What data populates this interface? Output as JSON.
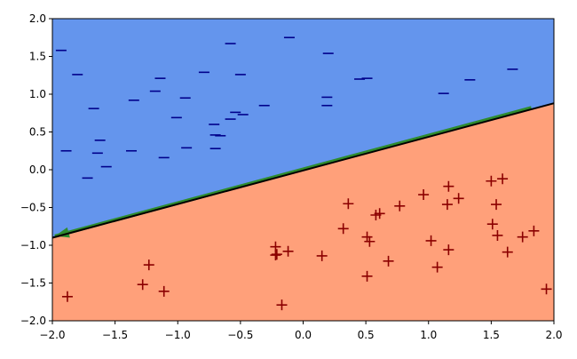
{
  "chart_data": {
    "type": "scatter",
    "xlim": [
      -2,
      2
    ],
    "ylim": [
      -2,
      2
    ],
    "xticks": [
      {
        "value": -2,
        "label": "−2.0"
      },
      {
        "value": -1.5,
        "label": "−1.5"
      },
      {
        "value": -1,
        "label": "−1.0"
      },
      {
        "value": -0.5,
        "label": "−0.5"
      },
      {
        "value": 0,
        "label": "0.0"
      },
      0.5,
      {
        "value": 1,
        "label": "1.0"
      },
      1.5,
      {
        "value": 2,
        "label": "2.0"
      }
    ],
    "yticks": [
      {
        "value": -2,
        "label": "−2.0"
      },
      {
        "value": -1.5,
        "label": "−1.5"
      },
      {
        "value": -1,
        "label": "−1.0"
      },
      {
        "value": -0.5,
        "label": "−0.5"
      },
      {
        "value": 0,
        "label": "0.0"
      },
      0.5,
      {
        "value": 1,
        "label": "1.0"
      },
      1.5,
      {
        "value": 2,
        "label": "2.0"
      }
    ],
    "regions": {
      "above": "#6495ed",
      "below": "#ffa07a"
    },
    "series": [
      {
        "marker": "_",
        "color": "#00008b",
        "x": [
          -1.93,
          -1.8,
          -1.67,
          -1.62,
          -1.64,
          -1.89,
          -1.72,
          -1.57,
          -1.37,
          -1.35,
          -1.18,
          -1.14,
          -1.11,
          -1.01,
          -0.94,
          -0.93,
          -0.79,
          -0.71,
          -0.7,
          -0.7,
          -0.66,
          -0.58,
          -0.58,
          -0.54,
          -0.5,
          -0.48,
          -0.31,
          -0.11,
          0.2,
          0.19,
          0.19,
          0.45,
          0.51,
          1.12,
          1.33,
          1.67
        ],
        "y": [
          1.58,
          1.26,
          0.81,
          0.39,
          0.22,
          0.25,
          -0.11,
          0.04,
          0.25,
          0.92,
          1.04,
          1.21,
          0.16,
          0.69,
          0.95,
          0.29,
          1.29,
          0.6,
          0.46,
          0.28,
          0.45,
          1.67,
          0.67,
          0.76,
          1.26,
          0.73,
          0.85,
          1.75,
          1.54,
          0.96,
          0.85,
          1.2,
          1.21,
          1.01,
          1.19,
          1.33
        ]
      },
      {
        "marker": "+",
        "color": "#8b0000",
        "x": [
          -1.88,
          -1.23,
          -1.28,
          -1.11,
          -0.22,
          -0.22,
          -0.21,
          -0.12,
          -0.17,
          0.15,
          0.32,
          0.36,
          0.51,
          0.53,
          0.51,
          0.58,
          0.61,
          0.68,
          0.77,
          0.96,
          1.02,
          1.07,
          1.16,
          1.15,
          1.16,
          1.24,
          1.5,
          1.59,
          1.54,
          1.51,
          1.55,
          1.63,
          1.75,
          1.84,
          1.94
        ],
        "y": [
          -1.68,
          -1.26,
          -1.52,
          -1.61,
          -1.02,
          -1.13,
          -1.12,
          -1.08,
          -1.79,
          -1.14,
          -0.78,
          -0.45,
          -0.89,
          -0.95,
          -1.41,
          -0.6,
          -0.58,
          -1.21,
          -0.48,
          -0.33,
          -0.94,
          -1.29,
          -0.22,
          -0.46,
          -1.06,
          -0.38,
          -0.15,
          -0.12,
          -0.46,
          -0.72,
          -0.87,
          -1.09,
          -0.89,
          -0.81,
          -1.58
        ]
      }
    ],
    "lines": [
      {
        "color": "#2e8b2e",
        "x": [
          -1.98,
          1.82
        ],
        "y": [
          -0.88,
          0.82
        ],
        "arrow": "start"
      },
      {
        "color": "#000000",
        "x": [
          -2,
          2
        ],
        "y": [
          -0.9,
          0.88
        ]
      }
    ]
  }
}
